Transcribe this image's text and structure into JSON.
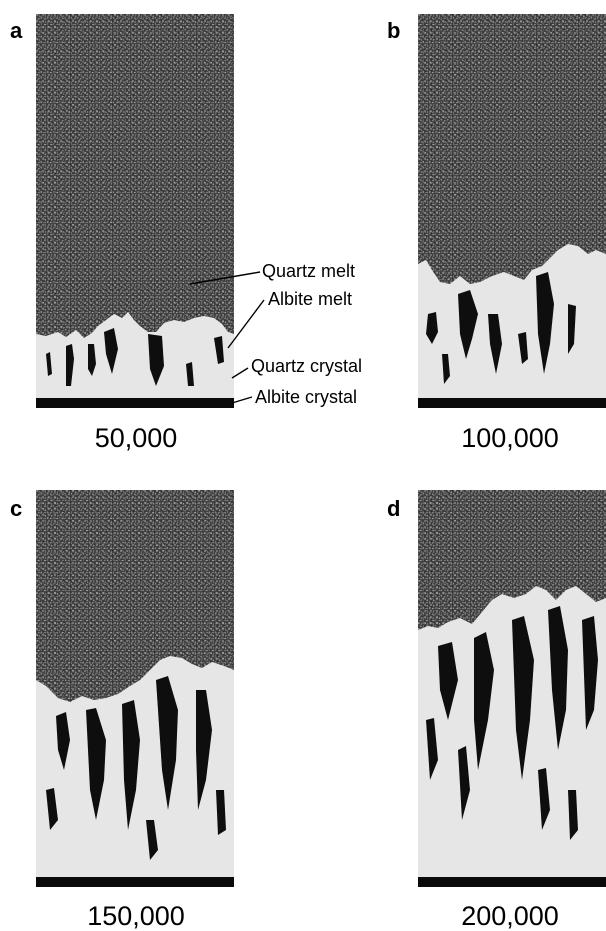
{
  "figure": {
    "panels": [
      {
        "letter": "a",
        "step": "50,000"
      },
      {
        "letter": "b",
        "step": "100,000"
      },
      {
        "letter": "c",
        "step": "150,000"
      },
      {
        "letter": "d",
        "step": "200,000"
      }
    ],
    "annotations": {
      "quartz_melt": "Quartz melt",
      "albite_melt": "Albite melt",
      "quartz_crystal": "Quartz crystal",
      "albite_crystal": "Albite crystal"
    },
    "colors": {
      "quartz_melt": "#3c3c3c",
      "albite_melt": "#8f8f8f",
      "quartz_crystal": "#e6e6e6",
      "albite_crystal": "#0a0a0a"
    }
  }
}
